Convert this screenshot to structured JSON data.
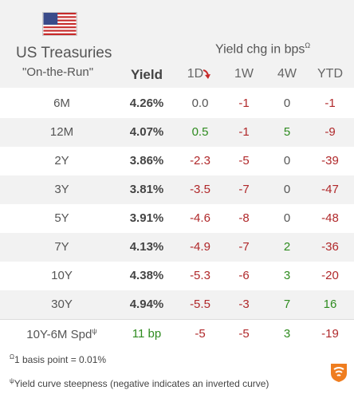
{
  "header": {
    "title": "US Treasuries",
    "subtitle": "\"On-the-Run\"",
    "yield_chg_label": "Yield chg in bps",
    "yield_chg_sup": "Ω",
    "col_yield": "Yield",
    "col_1d": "1D",
    "col_1w": "1W",
    "col_4w": "4W",
    "col_ytd": "YTD",
    "flag_icon": "us-flag-icon",
    "sort_icon": "red-down-arrow-icon"
  },
  "rows": [
    {
      "label": "6M",
      "yield": "4.26%",
      "d1": "0.0",
      "w1": "-1",
      "w4": "0",
      "ytd": "-1"
    },
    {
      "label": "12M",
      "yield": "4.07%",
      "d1": "0.5",
      "w1": "-1",
      "w4": "5",
      "ytd": "-9"
    },
    {
      "label": "2Y",
      "yield": "3.86%",
      "d1": "-2.3",
      "w1": "-5",
      "w4": "0",
      "ytd": "-39"
    },
    {
      "label": "3Y",
      "yield": "3.81%",
      "d1": "-3.5",
      "w1": "-7",
      "w4": "0",
      "ytd": "-47"
    },
    {
      "label": "5Y",
      "yield": "3.91%",
      "d1": "-4.6",
      "w1": "-8",
      "w4": "0",
      "ytd": "-48"
    },
    {
      "label": "7Y",
      "yield": "4.13%",
      "d1": "-4.9",
      "w1": "-7",
      "w4": "2",
      "ytd": "-36"
    },
    {
      "label": "10Y",
      "yield": "4.38%",
      "d1": "-5.3",
      "w1": "-6",
      "w4": "3",
      "ytd": "-20"
    },
    {
      "label": "30Y",
      "yield": "4.94%",
      "d1": "-5.5",
      "w1": "-3",
      "w4": "7",
      "ytd": "16"
    }
  ],
  "spread": {
    "label": "10Y-6M Spd",
    "label_sup": "ψ",
    "yield": "11 bp",
    "d1": "-5",
    "w1": "-5",
    "w4": "3",
    "ytd": "-19"
  },
  "footnotes": {
    "basis_sup": "Ω",
    "basis": "1 basis point = 0.01%",
    "curve_sup": "ψ",
    "curve": "Yield curve steepness (negative indicates an inverted curve)"
  },
  "colors": {
    "positive": "#2e8b1f",
    "negative": "#b0282a",
    "neutral": "#555555",
    "stripe": "#f2f2f2"
  }
}
